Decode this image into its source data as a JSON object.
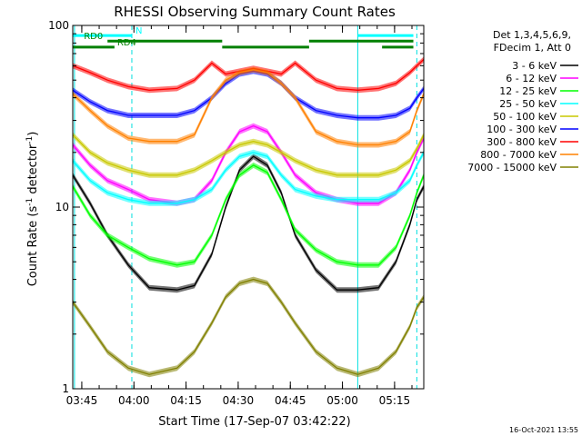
{
  "chart_data": {
    "type": "line",
    "title": "RHESSI Observing Summary Count Rates",
    "xlabel": "Start Time (17-Sep-07 03:42:22)",
    "ylabel": "Count Rate (s-1 detector-1)",
    "ylabel_parts": {
      "base": "Count Rate (s",
      "sup1": "-1",
      "mid": " detector",
      "sup2": "-1",
      "end": ")"
    },
    "y_scale": "log",
    "ylim": [
      1,
      100
    ],
    "xlim_minutes": [
      0,
      101
    ],
    "x_ticks": [
      {
        "label": "03:45",
        "minute": 2.6
      },
      {
        "label": "04:00",
        "minute": 17.6
      },
      {
        "label": "04:15",
        "minute": 32.6
      },
      {
        "label": "04:30",
        "minute": 47.6
      },
      {
        "label": "04:45",
        "minute": 62.6
      },
      {
        "label": "05:00",
        "minute": 77.6
      },
      {
        "label": "05:15",
        "minute": 92.6
      }
    ],
    "y_ticks": [
      {
        "label": "1",
        "value": 1
      },
      {
        "label": "10",
        "value": 10
      },
      {
        "label": "100",
        "value": 100
      }
    ],
    "legend": {
      "header": [
        "Det 1,3,4,5,6,9,",
        "FDecim 1, Att 0"
      ],
      "placement": "right"
    },
    "x_minutes": [
      0,
      5,
      10,
      16,
      22,
      30,
      35,
      40,
      44,
      48,
      52,
      56,
      60,
      64,
      70,
      76,
      82,
      88,
      93,
      97,
      99,
      101
    ],
    "series": [
      {
        "name": "3 - 6 keV",
        "color": "#000000",
        "values": [
          15,
          10.5,
          7,
          4.8,
          3.6,
          3.5,
          3.7,
          5.5,
          10,
          16,
          19,
          17,
          12,
          7,
          4.5,
          3.5,
          3.5,
          3.6,
          5,
          8,
          11,
          13
        ]
      },
      {
        "name": "6 - 12 keV",
        "color": "#ff00ff",
        "values": [
          22,
          17,
          14,
          12.5,
          11,
          10.5,
          11,
          14,
          20,
          26,
          28,
          26,
          20,
          15,
          12,
          11,
          10.5,
          10.5,
          12,
          16,
          20,
          24
        ]
      },
      {
        "name": "12 - 25 keV",
        "color": "#00ff00",
        "values": [
          13,
          9,
          7,
          6,
          5.2,
          4.8,
          5,
          7,
          11,
          15,
          17,
          15.5,
          11,
          7.5,
          5.8,
          5,
          4.8,
          4.8,
          6,
          9,
          12,
          15
        ]
      },
      {
        "name": "25 - 50 keV",
        "color": "#00ffff",
        "values": [
          18,
          14,
          12,
          11,
          10.5,
          10.5,
          11,
          12.5,
          16,
          19,
          20,
          19,
          15,
          12.5,
          11.5,
          11,
          11,
          11,
          12,
          14,
          17,
          20
        ]
      },
      {
        "name": "50 - 100 keV",
        "color": "#c8c800",
        "values": [
          25,
          20,
          17.5,
          16,
          15,
          15,
          16,
          18,
          20,
          22,
          23,
          22,
          20,
          18,
          16,
          15,
          15,
          15,
          16,
          18,
          21,
          25
        ]
      },
      {
        "name": "100 - 300 keV",
        "color": "#0000ff",
        "values": [
          44,
          38,
          34,
          32,
          32,
          32,
          34,
          40,
          48,
          54,
          56,
          54,
          48,
          40,
          34,
          32,
          31,
          31,
          32,
          35,
          40,
          45
        ]
      },
      {
        "name": "300 - 800 keV",
        "color": "#ff0000",
        "values": [
          60,
          55,
          50,
          46,
          44,
          45,
          50,
          62,
          54,
          56,
          58,
          56,
          54,
          62,
          50,
          45,
          44,
          45,
          48,
          55,
          60,
          65
        ]
      },
      {
        "name": "800 - 7000 keV",
        "color": "#ff8000",
        "values": [
          42,
          34,
          28,
          24,
          23,
          23,
          25,
          40,
          50,
          55,
          57,
          55,
          48,
          40,
          26,
          23,
          22,
          22,
          23,
          26,
          34,
          42
        ]
      },
      {
        "name": "7000 - 15000 keV",
        "color": "#808000",
        "values": [
          3,
          2.2,
          1.6,
          1.3,
          1.2,
          1.3,
          1.6,
          2.3,
          3.2,
          3.8,
          4,
          3.8,
          3,
          2.3,
          1.6,
          1.3,
          1.2,
          1.3,
          1.6,
          2.2,
          2.8,
          3.2
        ]
      }
    ],
    "state_bars": [
      {
        "label": "N",
        "color": "#00ffff",
        "value": 88,
        "segments": [
          [
            0,
            17
          ],
          [
            82,
            98
          ]
        ]
      },
      {
        "label": "RD0",
        "color": "#008000",
        "value": 82,
        "segments": [
          [
            10,
            43
          ],
          [
            68,
            98
          ]
        ]
      },
      {
        "label": "RD4",
        "color": "#008000",
        "value": 76,
        "segments": [
          [
            0,
            12
          ],
          [
            43,
            68
          ],
          [
            89,
            98
          ]
        ]
      }
    ],
    "vlines_solid_minutes": [
      0.5,
      82
    ],
    "vlines_dashed_minutes": [
      17,
      99
    ]
  },
  "footer": {
    "timestamp": "16-Oct-2021 13:55"
  }
}
